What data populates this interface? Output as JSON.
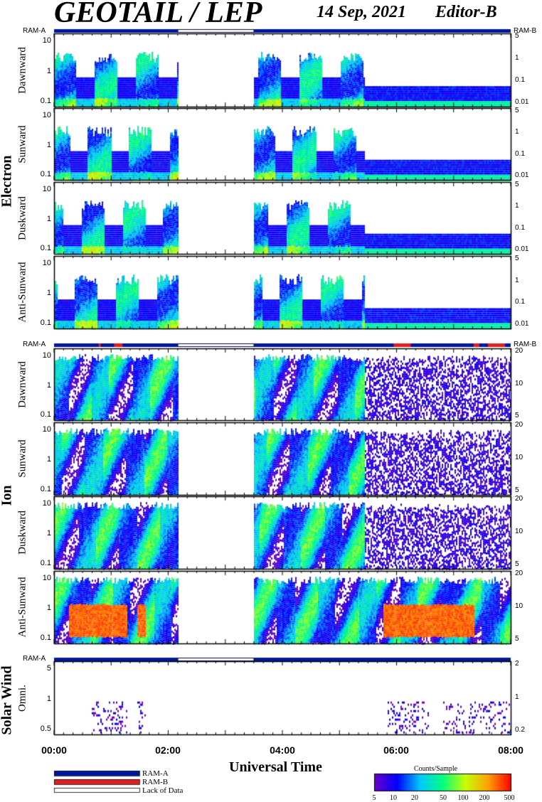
{
  "title": "GEOTAIL / LEP",
  "date": "14 Sep, 2021",
  "editor": "Editor-B",
  "groups": {
    "electron": "Electron",
    "ion": "Ion",
    "solar_wind": "Solar Wind"
  },
  "ram_labels": {
    "a": "RAM-A",
    "b": "RAM-B"
  },
  "legend": {
    "ram_a": "RAM-A",
    "ram_b": "RAM-B",
    "lack": "Lack of Data"
  },
  "colorbar": {
    "title": "Counts/Sample",
    "ticks": [
      "5",
      "10",
      "20",
      "50",
      "100",
      "200",
      "500"
    ],
    "colors": [
      "#6a00c8",
      "#0000ff",
      "#00c8ff",
      "#00ff80",
      "#c8ff00",
      "#ffa000",
      "#ff0000"
    ]
  },
  "colors": {
    "ram_a": "#0018a0",
    "ram_b": "#e02020"
  },
  "chart_data": {
    "type": "heatmap",
    "xlabel": "Universal Time",
    "x_ticks": [
      "00:00",
      "02:00",
      "04:00",
      "06:00",
      "08:00"
    ],
    "xlim_hours": [
      0,
      8
    ],
    "data_gap_hours": [
      2.17,
      3.5
    ],
    "panels": [
      {
        "group": "Electron",
        "label": "Dawnward",
        "left_ticks": [
          "10",
          "1",
          "0.1"
        ],
        "right_ticks": [
          "5",
          "1",
          "0.1",
          "0.01"
        ]
      },
      {
        "group": "Electron",
        "label": "Sunward",
        "left_ticks": [
          "10",
          "1",
          "0.1"
        ],
        "right_ticks": [
          "5",
          "1",
          "0.1",
          "0.01"
        ]
      },
      {
        "group": "Electron",
        "label": "Duskward",
        "left_ticks": [
          "10",
          "1",
          "0.1"
        ],
        "right_ticks": [
          "5",
          "1",
          "0.1",
          "0.01"
        ]
      },
      {
        "group": "Electron",
        "label": "Anti-Sunward",
        "left_ticks": [
          "10",
          "1",
          "0.1"
        ],
        "right_ticks": [
          "5",
          "1",
          "0.1",
          "0.01"
        ]
      },
      {
        "group": "Ion",
        "label": "Dawnward",
        "left_ticks": [
          "10",
          "1",
          "0.1"
        ],
        "right_ticks": [
          "20",
          "10",
          "5"
        ]
      },
      {
        "group": "Ion",
        "label": "Sunward",
        "left_ticks": [
          "10",
          "1",
          "0.1"
        ],
        "right_ticks": [
          "20",
          "10",
          "5"
        ]
      },
      {
        "group": "Ion",
        "label": "Duskward",
        "left_ticks": [
          "10",
          "1",
          "0.1"
        ],
        "right_ticks": [
          "20",
          "10",
          "5"
        ]
      },
      {
        "group": "Ion",
        "label": "Anti-Sunward",
        "left_ticks": [
          "10",
          "1",
          "0.1"
        ],
        "right_ticks": [
          "20",
          "10",
          "5"
        ]
      },
      {
        "group": "Solar Wind",
        "label": "Omni.",
        "left_ticks": [
          "5",
          "1",
          "0.5"
        ],
        "right_ticks": [
          "2",
          "1",
          "0.2"
        ]
      }
    ]
  }
}
